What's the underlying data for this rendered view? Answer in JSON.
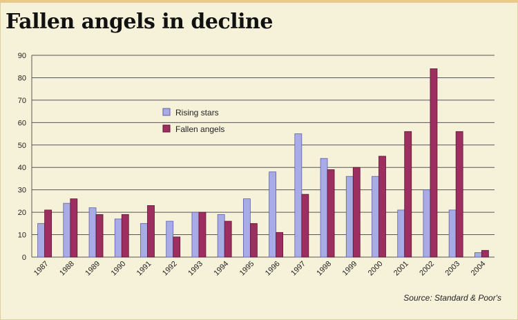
{
  "title": "Fallen angels in decline",
  "source": "Source: Standard & Poor's",
  "colors": {
    "rising": "#a9abe6",
    "rising_stroke": "#5d5fa8",
    "fallen": "#9c2f5f",
    "fallen_stroke": "#5e1535",
    "grid": "#555555",
    "background": "#f6f1d9"
  },
  "chart_data": {
    "type": "bar",
    "title": "Fallen angels in decline",
    "xlabel": "",
    "ylabel": "",
    "ylim": [
      0,
      90
    ],
    "yticks": [
      0,
      10,
      20,
      30,
      40,
      50,
      60,
      70,
      80,
      90
    ],
    "grid": true,
    "legend_position": "upper-left-center",
    "categories": [
      "1987",
      "1988",
      "1989",
      "1990",
      "1991",
      "1992",
      "1993",
      "1994",
      "1995",
      "1996",
      "1997",
      "1998",
      "1999",
      "2000",
      "2001",
      "2002",
      "2003",
      "2004"
    ],
    "series": [
      {
        "name": "Rising stars",
        "values": [
          15,
          24,
          22,
          17,
          15,
          16,
          20,
          19,
          26,
          38,
          55,
          44,
          36,
          36,
          21,
          30,
          21,
          2
        ]
      },
      {
        "name": "Fallen angels",
        "values": [
          21,
          26,
          19,
          19,
          23,
          9,
          20,
          16,
          15,
          11,
          28,
          39,
          40,
          45,
          56,
          84,
          56,
          3
        ]
      }
    ]
  }
}
